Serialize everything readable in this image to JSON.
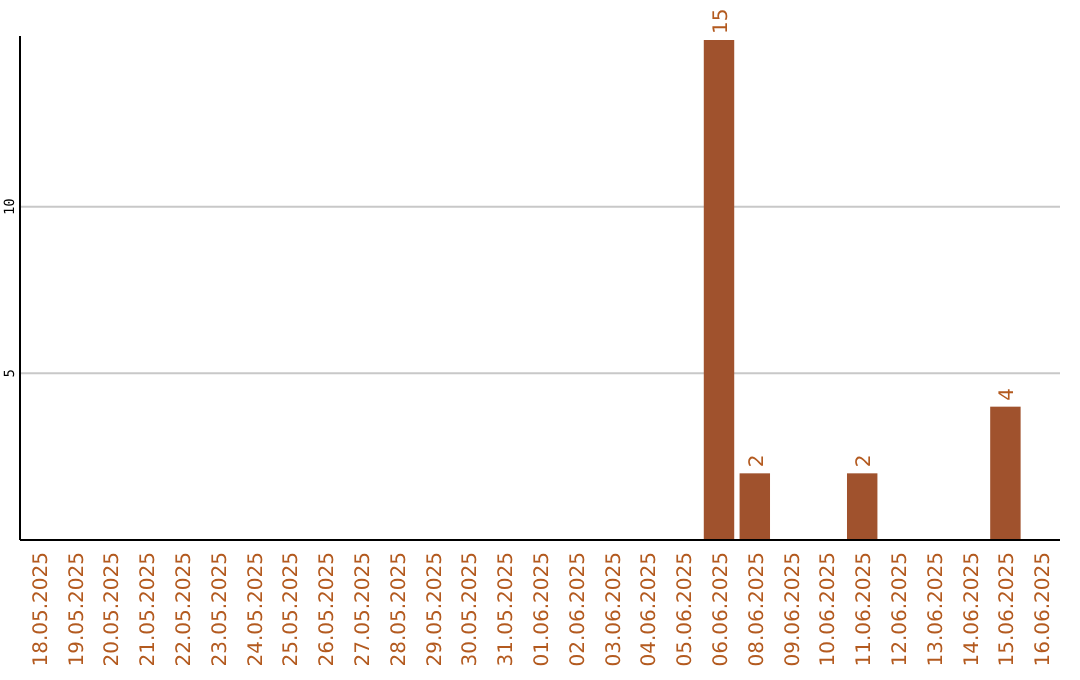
{
  "chart_data": {
    "type": "bar",
    "categories": [
      "18.05.2025",
      "19.05.2025",
      "20.05.2025",
      "21.05.2025",
      "22.05.2025",
      "23.05.2025",
      "24.05.2025",
      "25.05.2025",
      "26.05.2025",
      "27.05.2025",
      "28.05.2025",
      "29.05.2025",
      "30.05.2025",
      "31.05.2025",
      "01.06.2025",
      "02.06.2025",
      "03.06.2025",
      "04.06.2025",
      "05.06.2025",
      "06.06.2025",
      "08.06.2025",
      "09.06.2025",
      "10.06.2025",
      "11.06.2025",
      "12.06.2025",
      "13.06.2025",
      "14.06.2025",
      "15.06.2025",
      "16.06.2025"
    ],
    "values": [
      null,
      null,
      null,
      null,
      null,
      null,
      null,
      null,
      null,
      null,
      null,
      null,
      null,
      null,
      null,
      null,
      null,
      null,
      null,
      15,
      2,
      null,
      null,
      2,
      null,
      null,
      null,
      4,
      null
    ],
    "value_labels": [
      null,
      null,
      null,
      null,
      null,
      null,
      null,
      null,
      null,
      null,
      null,
      null,
      null,
      null,
      null,
      null,
      null,
      null,
      null,
      "15",
      "2",
      null,
      null,
      "2",
      null,
      null,
      null,
      "4",
      null
    ],
    "color": "#a0522d",
    "ylim": [
      0,
      15
    ],
    "yticks": [
      5,
      10
    ],
    "grid": "y"
  }
}
